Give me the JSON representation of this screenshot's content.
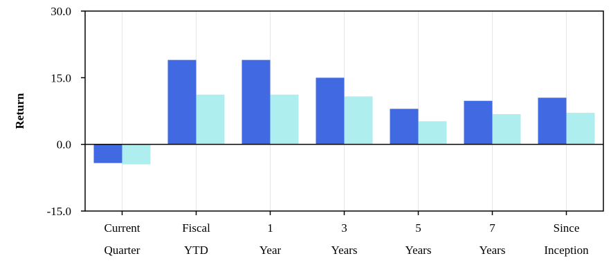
{
  "chart_data": {
    "type": "bar",
    "title": "",
    "xlabel": "",
    "ylabel": "Return",
    "ylim": [
      -15,
      30
    ],
    "yticks": [
      -15,
      0,
      15,
      30
    ],
    "ytick_labels": [
      "-15.0",
      "0.0",
      "15.0",
      "30.0"
    ],
    "categories": [
      [
        "Current",
        "Quarter"
      ],
      [
        "Fiscal",
        "YTD"
      ],
      [
        "1",
        "Year"
      ],
      [
        "3",
        "Years"
      ],
      [
        "5",
        "Years"
      ],
      [
        "7",
        "Years"
      ],
      [
        "Since",
        "Inception"
      ]
    ],
    "series": [
      {
        "values": [
          -4.2,
          19.0,
          19.0,
          15.0,
          8.0,
          9.8,
          10.5
        ],
        "color": "#4169e1"
      },
      {
        "values": [
          -4.5,
          11.2,
          11.2,
          10.8,
          5.2,
          6.8,
          7.1
        ],
        "color": "#afeeee"
      }
    ],
    "grid": {
      "vertical": true,
      "horizontal": false,
      "color": "#e6e6e6"
    },
    "legend": "none"
  }
}
